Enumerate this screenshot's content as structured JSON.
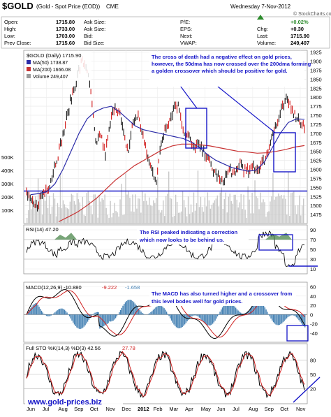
{
  "header": {
    "symbol_title": "$GOLD",
    "symbol_desc": "(Gold - Spot Price (EOD))",
    "exchange": "CME",
    "date": "Wednesday 7-Nov-2012",
    "credit": "© StockCharts.com",
    "quote_rows": [
      {
        "l1": "Open:",
        "v1": "1715.80",
        "l2": "Ask Size:",
        "v2": "",
        "l3": "P/E:",
        "v3": "",
        "l4": "",
        "v4": "+0.02%"
      },
      {
        "l1": "High:",
        "v1": "1733.00",
        "l2": "Ask Size:",
        "v2": "",
        "l3": "EPS:",
        "v3": "",
        "l4": "Chg:",
        "v4": "+0.30"
      },
      {
        "l1": "Low:",
        "v1": "1703.00",
        "l2": "Bid:",
        "v2": "",
        "l3": "Next:",
        "v3": "",
        "l4": "Last:",
        "v4": "1715.90"
      },
      {
        "l1": "Prev Close:",
        "v1": "1715.60",
        "l2": "Bid Size:",
        "v2": "",
        "l3": "VWAP:",
        "v3": "",
        "l4": "Volume:",
        "v4": "249,407"
      }
    ]
  },
  "colors": {
    "price": "#000000",
    "ma50": "#2b2ba8",
    "ma200": "#c83232",
    "annotation": "#1515c8",
    "volume": "#c8c8c8",
    "rsi_fill": "#3f7f3f",
    "macd": "#000000",
    "signal": "#d02020",
    "histogram": "#4682b4",
    "website": "#1515c8"
  },
  "chart_data": [
    {
      "type": "line",
      "legend": [
        "$GOLD (Daily) 1715.90",
        "MA(50) 1738.87",
        "MA(200) 1666.08",
        "Volume 249,407"
      ],
      "x_ticks": [
        "Jun",
        "Jul",
        "Aug",
        "Sep",
        "Oct",
        "Nov",
        "Dec",
        "2012",
        "Feb",
        "Mar",
        "Apr",
        "May",
        "Jun",
        "Jul",
        "Aug",
        "Sep",
        "Oct",
        "Nov"
      ],
      "ylim": [
        1450,
        1930
      ],
      "y_ticks": [
        "1925",
        "1900",
        "1875",
        "1850",
        "1825",
        "1800",
        "1775",
        "1750",
        "1725",
        "1700",
        "1675",
        "1650",
        "1625",
        "1600",
        "1575",
        "1550",
        "1525",
        "1500",
        "1475"
      ],
      "volume_ticks": [
        "500K",
        "400K",
        "300K",
        "200K",
        "100K"
      ],
      "support_level": 1540,
      "annotation": "The cross of death had a negative effect on gold prices, however, the 50dma has now crossed over the 200dma forming a golden crossover which should be positive for gold.",
      "series": {
        "price": [
          1535,
          1510,
          1495,
          1520,
          1540,
          1560,
          1605,
          1650,
          1700,
          1760,
          1815,
          1860,
          1900,
          1885,
          1800,
          1660,
          1700,
          1640,
          1720,
          1780,
          1760,
          1690,
          1650,
          1730,
          1750,
          1700,
          1640,
          1600,
          1570,
          1660,
          1720,
          1740,
          1780,
          1770,
          1700,
          1690,
          1660,
          1670,
          1650,
          1640,
          1600,
          1590,
          1560,
          1580,
          1600,
          1580,
          1620,
          1600,
          1590,
          1610,
          1600,
          1620,
          1640,
          1700,
          1720,
          1760,
          1790,
          1780,
          1750,
          1735,
          1716
        ],
        "ma50": [
          1530,
          1533,
          1538,
          1560,
          1600,
          1650,
          1700,
          1740,
          1760,
          1770,
          1775,
          1760,
          1740,
          1720,
          1710,
          1705,
          1700,
          1695,
          1690,
          1685,
          1675,
          1660,
          1640,
          1625,
          1615,
          1605,
          1600,
          1595,
          1598,
          1620,
          1660,
          1700,
          1730,
          1740,
          1739
        ],
        "ma200": [
          1455,
          1468,
          1482,
          1500,
          1520,
          1545,
          1570,
          1590,
          1610,
          1625,
          1640,
          1655,
          1665,
          1670,
          1670,
          1668,
          1665,
          1660,
          1655,
          1650,
          1648,
          1645,
          1646,
          1650,
          1655,
          1662,
          1666
        ]
      }
    },
    {
      "type": "line",
      "legend": "RSI(14) 47.20",
      "y_ticks": [
        "90",
        "70",
        "50",
        "30",
        "10"
      ],
      "ylim": [
        0,
        100
      ],
      "annotation": "The RSI peaked indicating a correction which now looks to be behind us."
    },
    {
      "type": "line",
      "legend": [
        "MACD(12,26,9) -10.880",
        "-9.222",
        "-1.658"
      ],
      "y_ticks": [
        "60",
        "40",
        "20",
        "0",
        "-20",
        "-40"
      ],
      "ylim": [
        -60,
        70
      ],
      "annotation": "The MACD has also turned higher and a crossover from this level bodes well for gold prices."
    },
    {
      "type": "line",
      "legend": [
        "Full STO %K(14,3) %D(3) 42.56",
        "27.78"
      ],
      "y_ticks": [
        "80",
        "50",
        "20"
      ],
      "ylim": [
        0,
        100
      ]
    }
  ],
  "footer": {
    "website": "www.gold-prices.biz"
  }
}
